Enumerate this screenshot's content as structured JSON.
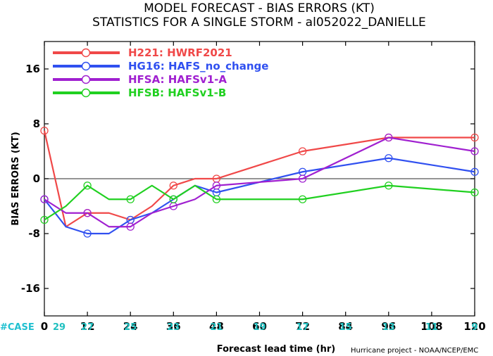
{
  "chart_data": {
    "type": "line",
    "title": "MODEL FORECAST - BIAS ERRORS (KT)",
    "subtitle": "STATISTICS FOR A SINGLE STORM - al052022_DANIELLE",
    "xlabel": "Forecast lead time (hr)",
    "ylabel": "BIAS ERRORS (KT)",
    "xlim": [
      0,
      120
    ],
    "ylim": [
      -20,
      20
    ],
    "xticks": [
      0,
      12,
      24,
      36,
      48,
      60,
      72,
      84,
      96,
      108,
      120
    ],
    "yticks": [
      -16,
      -8,
      0,
      8,
      16
    ],
    "zero_line": true,
    "legend_position": "top-left",
    "case_label": "#CASE",
    "case_counts": [
      {
        "x": 0,
        "n": "29"
      },
      {
        "x": 12,
        "n": "27"
      },
      {
        "x": 24,
        "n": "25"
      },
      {
        "x": 36,
        "n": "23"
      },
      {
        "x": 48,
        "n": "21"
      },
      {
        "x": 60,
        "n": "19"
      },
      {
        "x": 72,
        "n": "17"
      },
      {
        "x": 84,
        "n": "15"
      },
      {
        "x": 96,
        "n": "13"
      },
      {
        "x": 108,
        "n": "11"
      },
      {
        "x": 120,
        "n": "9"
      }
    ],
    "credit": "Hurricane project - NOAA/NCEP/EMC",
    "series": [
      {
        "name": "H221: HWRF2021",
        "color": "#f04848",
        "x": [
          0,
          6,
          12,
          18,
          24,
          30,
          36,
          42,
          48,
          72,
          96,
          120
        ],
        "y": [
          7,
          -7,
          -5,
          -5,
          -6,
          -4,
          -1,
          0,
          0,
          4,
          6,
          6
        ]
      },
      {
        "name": "HG16: HAFS_no_change",
        "color": "#3050f0",
        "x": [
          0,
          6,
          12,
          18,
          24,
          30,
          36,
          42,
          48,
          72,
          96,
          120
        ],
        "y": [
          -3,
          -7,
          -8,
          -8,
          -6,
          -5,
          -3,
          -1,
          -2,
          1,
          3,
          1
        ]
      },
      {
        "name": "HFSA: HAFSv1-A",
        "color": "#a020d0",
        "x": [
          0,
          6,
          12,
          18,
          24,
          30,
          36,
          42,
          48,
          72,
          96,
          120
        ],
        "y": [
          -3,
          -5,
          -5,
          -7,
          -7,
          -5,
          -4,
          -3,
          -1,
          0,
          6,
          4
        ]
      },
      {
        "name": "HFSB: HAFSv1-B",
        "color": "#20d020",
        "x": [
          0,
          6,
          12,
          18,
          24,
          30,
          36,
          42,
          48,
          72,
          96,
          120
        ],
        "y": [
          -6,
          -4,
          -1,
          -3,
          -3,
          -1,
          -3,
          -1,
          -3,
          -3,
          -1,
          -2
        ]
      }
    ],
    "colors": {
      "case_label": "#20c0d0",
      "case_counts": "#20c0c0",
      "zero_line": "#555555"
    }
  }
}
